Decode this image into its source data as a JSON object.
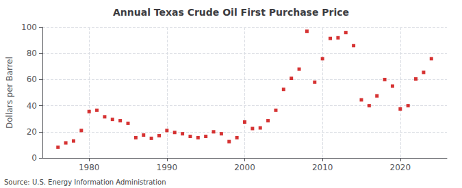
{
  "chart_data": {
    "type": "scatter",
    "title": "Annual Texas Crude Oil First Purchase Price",
    "ylabel": "Dollars per Barrel",
    "annotation": "Source: U.S. Energy Information Administration",
    "x": [
      1976,
      1977,
      1978,
      1979,
      1980,
      1981,
      1982,
      1983,
      1984,
      1985,
      1986,
      1987,
      1988,
      1989,
      1990,
      1991,
      1992,
      1993,
      1994,
      1995,
      1996,
      1997,
      1998,
      1999,
      2000,
      2001,
      2002,
      2003,
      2004,
      2005,
      2006,
      2007,
      2008,
      2009,
      2010,
      2011,
      2012,
      2013,
      2014,
      2015,
      2016,
      2017,
      2018,
      2019,
      2020,
      2021,
      2022,
      2023,
      2024
    ],
    "values": [
      8.2,
      11.5,
      13.0,
      21.0,
      35.5,
      36.5,
      31.5,
      29.5,
      28.5,
      26.5,
      15.5,
      17.5,
      15.0,
      17.0,
      21.0,
      19.5,
      18.5,
      16.5,
      15.5,
      16.5,
      20.0,
      18.5,
      12.5,
      15.5,
      27.5,
      22.5,
      23.0,
      28.5,
      36.5,
      52.5,
      61.0,
      68.0,
      97.0,
      58.0,
      76.0,
      91.5,
      92.0,
      96.0,
      86.0,
      44.5,
      40.0,
      47.5,
      60.0,
      55.0,
      37.5,
      40.0,
      60.5,
      65.5,
      76.0
    ],
    "color": "#cc0000",
    "marker": "square",
    "xlim": [
      1974,
      2026
    ],
    "ylim": [
      0,
      100
    ],
    "xticks": [
      1980,
      1990,
      2000,
      2010,
      2020
    ],
    "yticks": [
      0,
      20,
      40,
      60,
      80,
      100
    ],
    "grid": true
  }
}
